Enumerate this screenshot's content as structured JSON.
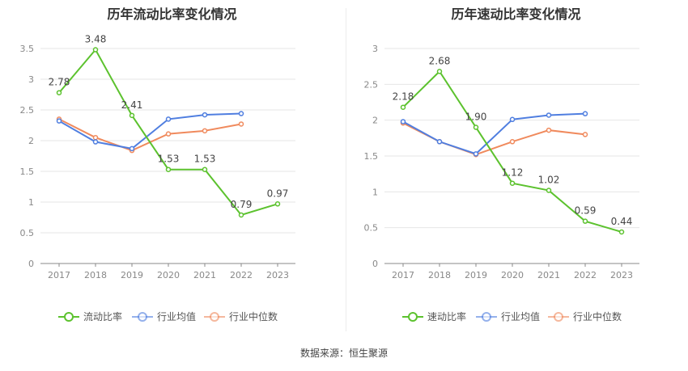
{
  "colors": {
    "main": "#5cc22e",
    "avg": "#4f7ee0",
    "median": "#f08a5d",
    "grid": "#e6e6e6",
    "axis": "#888888"
  },
  "chart_data": [
    {
      "type": "line",
      "title": "历年流动比率变化情况",
      "categories": [
        "2017",
        "2018",
        "2019",
        "2020",
        "2021",
        "2022",
        "2023"
      ],
      "ylim": [
        0,
        3.5
      ],
      "yticks": [
        "0",
        "0.5",
        "1",
        "1.5",
        "2",
        "2.5",
        "3",
        "3.5"
      ],
      "series": [
        {
          "name": "流动比率",
          "values": [
            2.78,
            3.48,
            2.41,
            1.53,
            1.53,
            0.79,
            0.97
          ],
          "labels": [
            "2.78",
            "3.48",
            "2.41",
            "1.53",
            "1.53",
            "0.79",
            "0.97"
          ]
        },
        {
          "name": "行业均值",
          "values": [
            2.32,
            1.98,
            1.87,
            2.35,
            2.42,
            2.44,
            null
          ]
        },
        {
          "name": "行业中位数",
          "values": [
            2.35,
            2.05,
            1.84,
            2.11,
            2.16,
            2.27,
            null
          ]
        }
      ],
      "legend": "bottom",
      "grid": true
    },
    {
      "type": "line",
      "title": "历年速动比率变化情况",
      "categories": [
        "2017",
        "2018",
        "2019",
        "2020",
        "2021",
        "2022",
        "2023"
      ],
      "ylim": [
        0,
        3
      ],
      "yticks": [
        "0",
        "0.5",
        "1",
        "1.5",
        "2",
        "2.5",
        "3"
      ],
      "series": [
        {
          "name": "速动比率",
          "values": [
            2.18,
            2.68,
            1.9,
            1.12,
            1.02,
            0.59,
            0.44
          ],
          "labels": [
            "2.18",
            "2.68",
            "1.90",
            "1.12",
            "1.02",
            "0.59",
            "0.44"
          ]
        },
        {
          "name": "行业均值",
          "values": [
            1.98,
            1.7,
            1.53,
            2.01,
            2.07,
            2.09,
            null
          ]
        },
        {
          "name": "行业中位数",
          "values": [
            1.96,
            1.7,
            1.52,
            1.7,
            1.86,
            1.8,
            null
          ]
        }
      ],
      "legend": "bottom",
      "grid": true
    }
  ],
  "source": "数据来源：恒生聚源"
}
